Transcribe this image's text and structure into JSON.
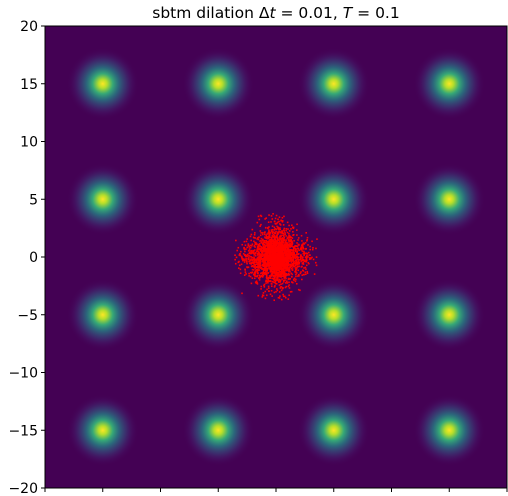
{
  "chart_data": {
    "type": "heatmap",
    "title_parts": {
      "prefix": "sbtm dilation ",
      "dt_symbol": "Δ",
      "dt_var": "t",
      "dt_value": " = 0.01, ",
      "T_var": "T",
      "T_value": " = 0.1"
    },
    "xlim": [
      -20,
      20
    ],
    "ylim": [
      -20,
      20
    ],
    "x_ticks": [
      -20,
      -15,
      -10,
      -5,
      0,
      5,
      10,
      15,
      20
    ],
    "x_tick_labels_shown": false,
    "y_ticks": [
      {
        "value": 20,
        "label": "20"
      },
      {
        "value": 15,
        "label": "15"
      },
      {
        "value": 10,
        "label": "10"
      },
      {
        "value": 5,
        "label": "5"
      },
      {
        "value": 0,
        "label": "0"
      },
      {
        "value": -5,
        "label": "−5"
      },
      {
        "value": -10,
        "label": "−10"
      },
      {
        "value": -15,
        "label": "−15"
      },
      {
        "value": -20,
        "label": "−20"
      }
    ],
    "density_centers_x": [
      -15,
      -5,
      5,
      15
    ],
    "density_centers_y": [
      15,
      5,
      -5,
      -15
    ],
    "density_sigma": 1.2,
    "colormap": "viridis",
    "background_color": "#440154",
    "peak_color": "#fde725",
    "particles": {
      "color": "#ff0000",
      "count": 2600,
      "center": [
        0,
        0
      ],
      "approx_extent": [
        [
          -3.6,
          3.6
        ],
        [
          -3.8,
          3.8
        ]
      ]
    },
    "grid": false,
    "legend": "none"
  }
}
